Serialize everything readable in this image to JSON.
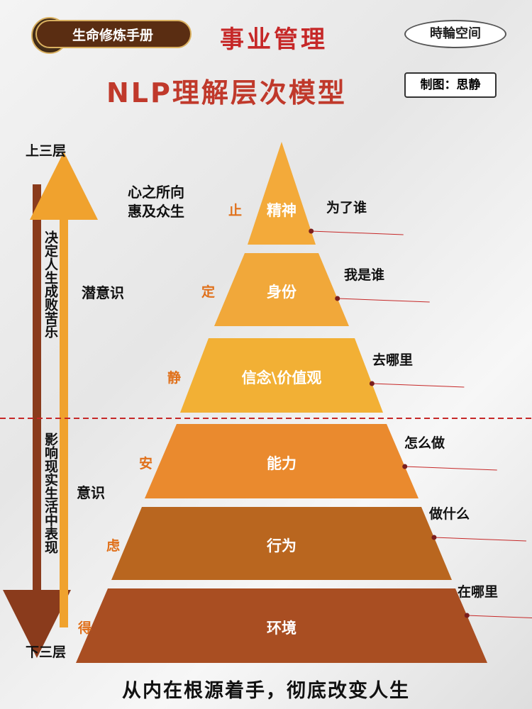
{
  "header": {
    "badge": "生命修炼手册",
    "title": "事业管理",
    "brand": "時輪空间",
    "subtitle": "NLP理解层次模型",
    "credit": "制图：思静"
  },
  "left": {
    "top_label": "上三层",
    "bottom_label": "下三层",
    "upper_effect": "决定人生成败苦乐",
    "lower_effect": "影响现实生活中表现",
    "notes": [
      "心之所向",
      "惠及众生",
      "潜意识",
      "意识"
    ]
  },
  "layers": [
    {
      "name": "精神",
      "side": "止",
      "question": "为了谁"
    },
    {
      "name": "身份",
      "side": "定",
      "question": "我是谁"
    },
    {
      "name": "信念\\价值观",
      "side": "静",
      "question": "去哪里"
    },
    {
      "name": "能力",
      "side": "安",
      "question": "怎么做"
    },
    {
      "name": "行为",
      "side": "虑",
      "question": "做什么"
    },
    {
      "name": "环境",
      "side": "得",
      "question": "在哪里"
    }
  ],
  "footer": "从内在根源着手，彻底改变人生"
}
